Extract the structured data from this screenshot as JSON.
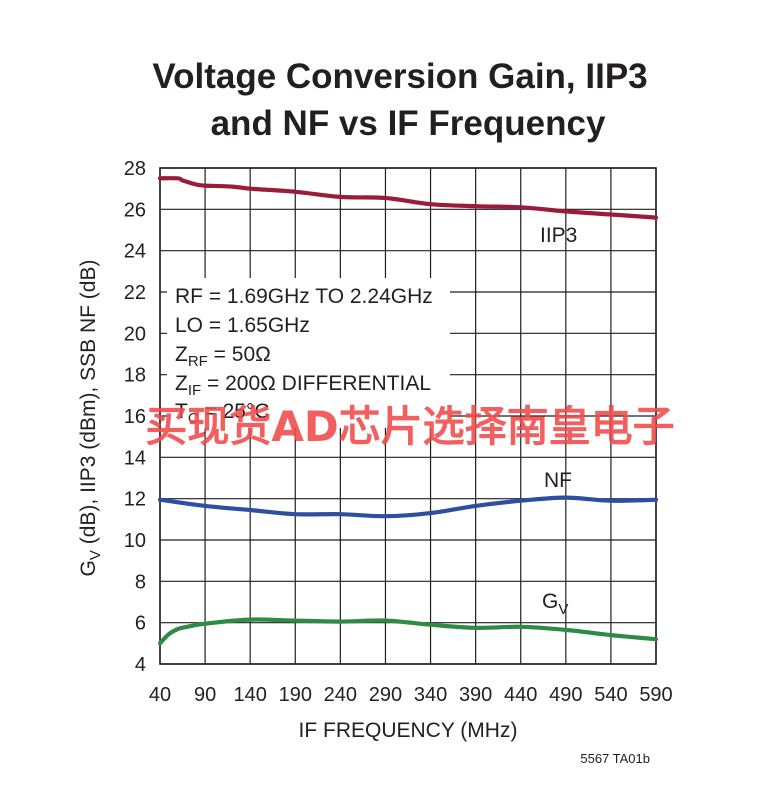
{
  "chart_data": {
    "type": "line",
    "title": [
      "Voltage Conversion Gain, IIP3",
      "and NF vs IF Frequency"
    ],
    "xlabel": "IF FREQUENCY (MHz)",
    "ylabel": {
      "g": "G",
      "sub": "V",
      "rest": " (dB), IIP3 (dBm), SSB NF (dB)"
    },
    "xlim": [
      40,
      590
    ],
    "ylim": [
      4,
      28
    ],
    "xticks": [
      40,
      90,
      140,
      190,
      240,
      290,
      340,
      390,
      440,
      490,
      540,
      590
    ],
    "yticks": [
      4,
      6,
      8,
      10,
      12,
      14,
      16,
      18,
      20,
      22,
      24,
      26,
      28
    ],
    "grid": true,
    "series": [
      {
        "name": "IIP3",
        "color": "#9b1b3a",
        "x": [
          40,
          60,
          65,
          80,
          90,
          120,
          140,
          190,
          240,
          290,
          340,
          390,
          440,
          490,
          540,
          590
        ],
        "y": [
          27.5,
          27.5,
          27.4,
          27.2,
          27.15,
          27.1,
          27.0,
          26.85,
          26.6,
          26.55,
          26.25,
          26.15,
          26.1,
          25.9,
          25.75,
          25.6
        ]
      },
      {
        "name": "NF",
        "color": "#2d4f9f",
        "x": [
          40,
          90,
          140,
          190,
          240,
          290,
          340,
          390,
          440,
          490,
          540,
          590
        ],
        "y": [
          11.95,
          11.65,
          11.45,
          11.25,
          11.25,
          11.15,
          11.3,
          11.65,
          11.9,
          12.05,
          11.9,
          11.95
        ]
      },
      {
        "name": "GV",
        "color": "#2e8b45",
        "x": [
          40,
          50,
          60,
          70,
          90,
          140,
          190,
          240,
          290,
          340,
          390,
          440,
          490,
          540,
          590
        ],
        "y": [
          5.0,
          5.45,
          5.7,
          5.8,
          5.95,
          6.15,
          6.1,
          6.05,
          6.1,
          5.9,
          5.75,
          5.8,
          5.65,
          5.4,
          5.2
        ]
      }
    ],
    "series_labels": {
      "iip3": "IIP3",
      "nf": "NF",
      "gv": {
        "main": "G",
        "sub": "V"
      }
    },
    "annotations": {
      "rf": "RF = 1.69GHz TO 2.24GHz",
      "lo": "LO = 1.65GHz",
      "zrf": {
        "main": "Z",
        "sub": "RF",
        "rest": " = 50Ω"
      },
      "zif": {
        "main": "Z",
        "sub": "IF",
        "rest": " = 200Ω DIFFERENTIAL"
      },
      "tc": {
        "main": "T",
        "sub": "C",
        "rest": " = 25°C"
      }
    },
    "figure_code": "5567 TA01b"
  },
  "watermark": "买现货AD芯片选择南皇电子"
}
